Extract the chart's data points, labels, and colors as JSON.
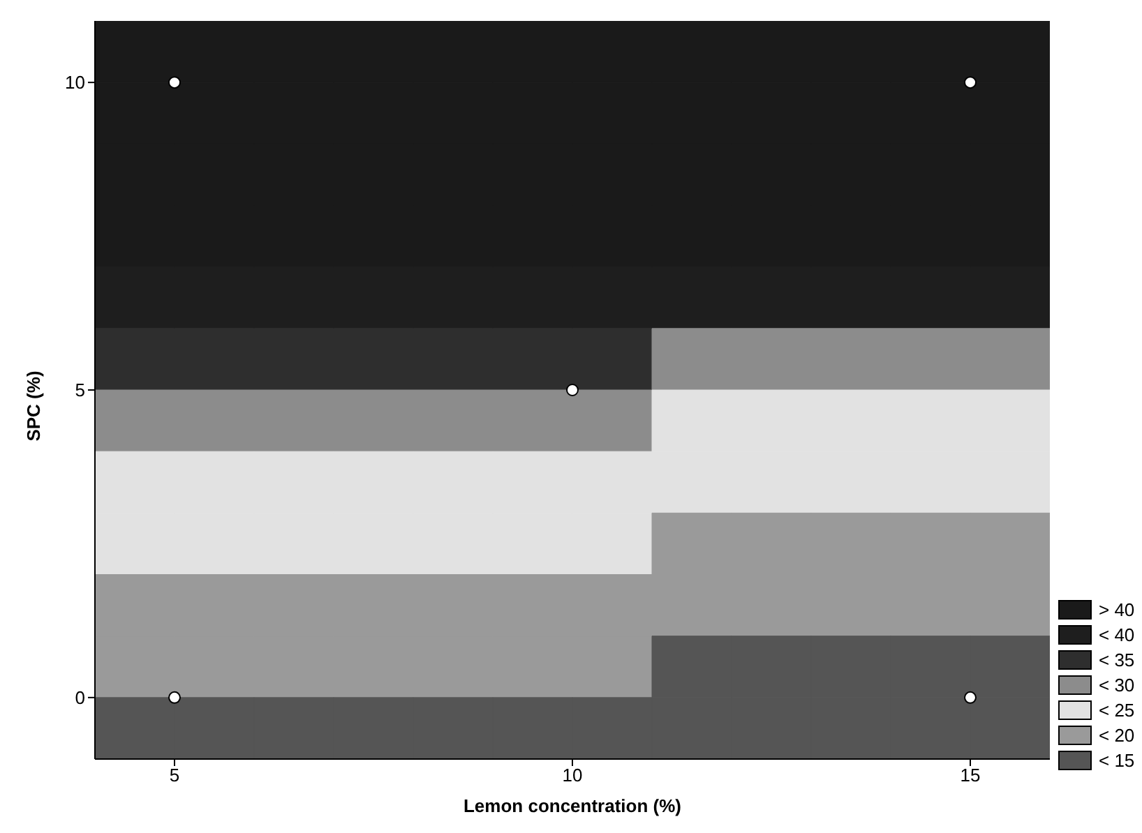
{
  "chart_data": {
    "type": "heatmap",
    "xlabel": "Lemon concentration (%)",
    "ylabel": "SPC (%)",
    "x": [
      4.5,
      5.5,
      6.5,
      7.5,
      8.5,
      9.5,
      10.5,
      11.5,
      12.5,
      13.5,
      14.5,
      15.5
    ],
    "xlim": [
      4,
      16
    ],
    "xticks": [
      5,
      10,
      15
    ],
    "ylim": [
      -1,
      11
    ],
    "yticks": [
      0,
      5,
      10
    ],
    "cells": [
      [
        42.5,
        42.5,
        42.5,
        42.5,
        42.5,
        42.5,
        42.5,
        42.5,
        42.5,
        42.5,
        42.5,
        42.5
      ],
      [
        42.5,
        42.5,
        42.5,
        42.5,
        42.5,
        42.5,
        42.5,
        42.5,
        42.5,
        42.5,
        42.5,
        42.5
      ],
      [
        42.5,
        42.5,
        42.5,
        42.5,
        42.5,
        42.5,
        42.5,
        42.5,
        42.5,
        42.5,
        42.5,
        42.5
      ],
      [
        42.5,
        42.5,
        42.5,
        42.5,
        42.5,
        42.5,
        42.5,
        42.5,
        42.5,
        42.5,
        42.5,
        42.5
      ],
      [
        37.5,
        37.5,
        37.5,
        37.5,
        37.5,
        37.5,
        37.5,
        37.5,
        37.5,
        37.5,
        37.5,
        37.5
      ],
      [
        32.5,
        32.5,
        32.5,
        32.5,
        32.5,
        32.5,
        32.5,
        27.5,
        27.5,
        27.5,
        27.5,
        27.5
      ],
      [
        27.5,
        27.5,
        27.5,
        27.5,
        27.5,
        27.5,
        27.5,
        22.5,
        22.5,
        22.5,
        22.5,
        22.5
      ],
      [
        22.5,
        22.5,
        22.5,
        22.5,
        22.5,
        22.5,
        22.5,
        22.5,
        22.5,
        22.5,
        22.5,
        22.5
      ],
      [
        22.5,
        22.5,
        22.5,
        22.5,
        22.5,
        22.5,
        22.5,
        17.5,
        17.5,
        17.5,
        17.5,
        17.5
      ],
      [
        17.5,
        17.5,
        17.5,
        17.5,
        17.5,
        17.5,
        17.5,
        17.5,
        17.5,
        17.5,
        17.5,
        17.5
      ],
      [
        17.5,
        17.5,
        17.5,
        17.5,
        17.5,
        17.5,
        17.5,
        12.5,
        12.5,
        12.5,
        12.5,
        12.5
      ],
      [
        12.5,
        12.5,
        12.5,
        12.5,
        12.5,
        12.5,
        12.5,
        12.5,
        12.5,
        12.5,
        12.5,
        12.5
      ]
    ],
    "clim": [
      10,
      45
    ],
    "cticks": [
      {
        "value": 42.5,
        "label": "> 40"
      },
      {
        "value": 37.5,
        "label": "< 40"
      },
      {
        "value": 32.5,
        "label": "< 35"
      },
      {
        "value": 27.5,
        "label": "< 30"
      },
      {
        "value": 22.5,
        "label": "< 25"
      },
      {
        "value": 17.5,
        "label": "< 20"
      },
      {
        "value": 12.5,
        "label": "< 15"
      }
    ],
    "colors": [
      "#1a1a1a",
      "#1e1e1e",
      "#2e2e2e",
      "#8c8c8c",
      "#e2e2e2",
      "#9a9a9a",
      "#555555"
    ],
    "series": [
      {
        "type": "scatter",
        "color": "#ffffff",
        "x": [
          5,
          15,
          10,
          5,
          15
        ],
        "values": [
          10,
          10,
          5,
          0,
          0
        ]
      }
    ]
  }
}
